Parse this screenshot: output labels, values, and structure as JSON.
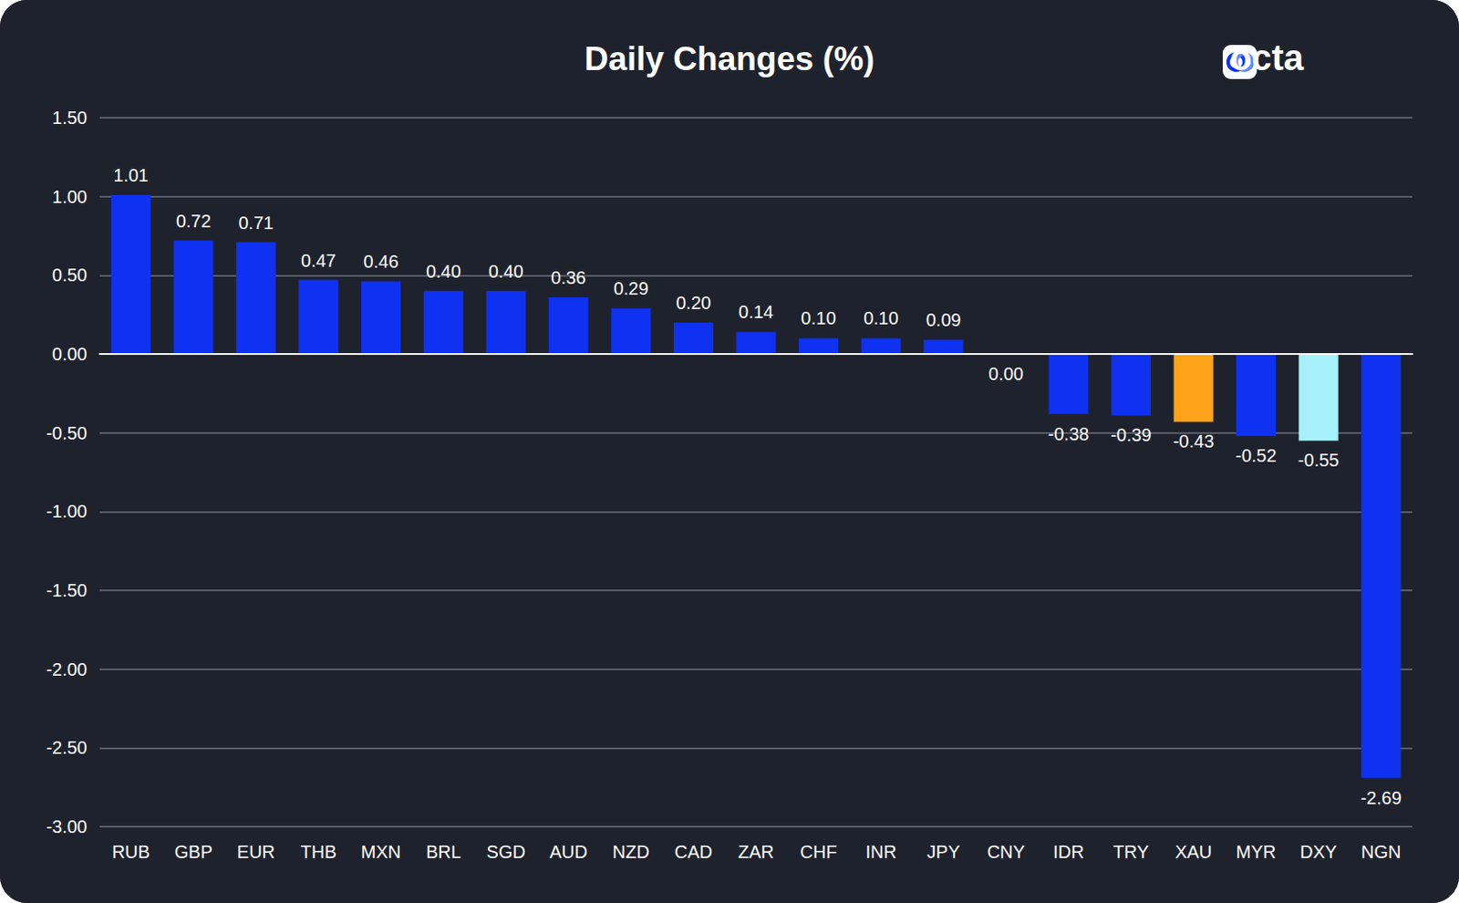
{
  "chart_data": {
    "type": "bar",
    "title": "Daily Changes (%)",
    "annotations": [
      "octa"
    ],
    "categories": [
      "RUB",
      "GBP",
      "EUR",
      "THB",
      "MXN",
      "BRL",
      "SGD",
      "AUD",
      "NZD",
      "CAD",
      "ZAR",
      "CHF",
      "INR",
      "JPY",
      "CNY",
      "IDR",
      "TRY",
      "XAU",
      "MYR",
      "DXY",
      "NGN"
    ],
    "values": [
      1.01,
      0.72,
      0.71,
      0.47,
      0.46,
      0.4,
      0.4,
      0.36,
      0.29,
      0.2,
      0.14,
      0.1,
      0.1,
      0.09,
      0,
      -0.38,
      -0.39,
      -0.43,
      -0.52,
      -0.55,
      -2.69
    ],
    "value_labels": [
      "1.01",
      "0.72",
      "0.71",
      "0.47",
      "0.46",
      "0.40",
      "0.40",
      "0.36",
      "0.29",
      "0.20",
      "0.14",
      "0.10",
      "0.10",
      "0.09",
      "0.00",
      "-0.38",
      "-0.39",
      "-0.43",
      "-0.52",
      "-0.55",
      "-2.69"
    ],
    "colors": [
      "#0f31f2",
      "#0f31f2",
      "#0f31f2",
      "#0f31f2",
      "#0f31f2",
      "#0f31f2",
      "#0f31f2",
      "#0f31f2",
      "#0f31f2",
      "#0f31f2",
      "#0f31f2",
      "#0f31f2",
      "#0f31f2",
      "#0f31f2",
      "#0f31f2",
      "#0f31f2",
      "#0f31f2",
      "#ffa31a",
      "#0f31f2",
      "#a6f1f9",
      "#0f31f2"
    ],
    "ylim": [
      -3,
      1.5
    ],
    "yticks": [
      {
        "value": -3,
        "label": "-3.00"
      },
      {
        "value": -2.5,
        "label": "-2.50"
      },
      {
        "value": -2,
        "label": "-2.00"
      },
      {
        "value": -1.5,
        "label": "-1.50"
      },
      {
        "value": -1,
        "label": "-1.00"
      },
      {
        "value": -0.5,
        "label": "-0.50"
      },
      {
        "value": 0,
        "label": "0.00"
      },
      {
        "value": 0.5,
        "label": "0.50"
      },
      {
        "value": 1,
        "label": "1.00"
      },
      {
        "value": 1.5,
        "label": "1.50"
      }
    ],
    "grid": true,
    "data_labels": true
  }
}
